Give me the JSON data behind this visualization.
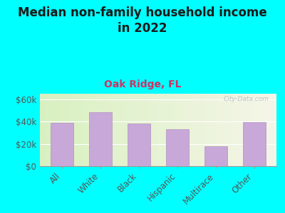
{
  "title": "Median non-family household income\nin 2022",
  "subtitle": "Oak Ridge, FL",
  "watermark": "City-Data.com",
  "categories": [
    "All",
    "White",
    "Black",
    "Hispanic",
    "Multirace",
    "Other"
  ],
  "values": [
    39000,
    48500,
    38500,
    33000,
    18000,
    39500
  ],
  "bar_color": "#c8a8d8",
  "bar_edge_color": "#b090c0",
  "background_color": "#00ffff",
  "plot_bg_left": "#d8f0c0",
  "plot_bg_right": "#f5f5e8",
  "title_color": "#1a1a1a",
  "subtitle_color": "#cc3366",
  "yticks": [
    0,
    20000,
    40000,
    60000
  ],
  "ytick_labels": [
    "$0",
    "$20k",
    "$40k",
    "$60k"
  ],
  "ylim": [
    0,
    65000
  ],
  "title_fontsize": 12,
  "subtitle_fontsize": 10,
  "tick_fontsize": 8.5,
  "watermark_color": "#b0b8c0"
}
